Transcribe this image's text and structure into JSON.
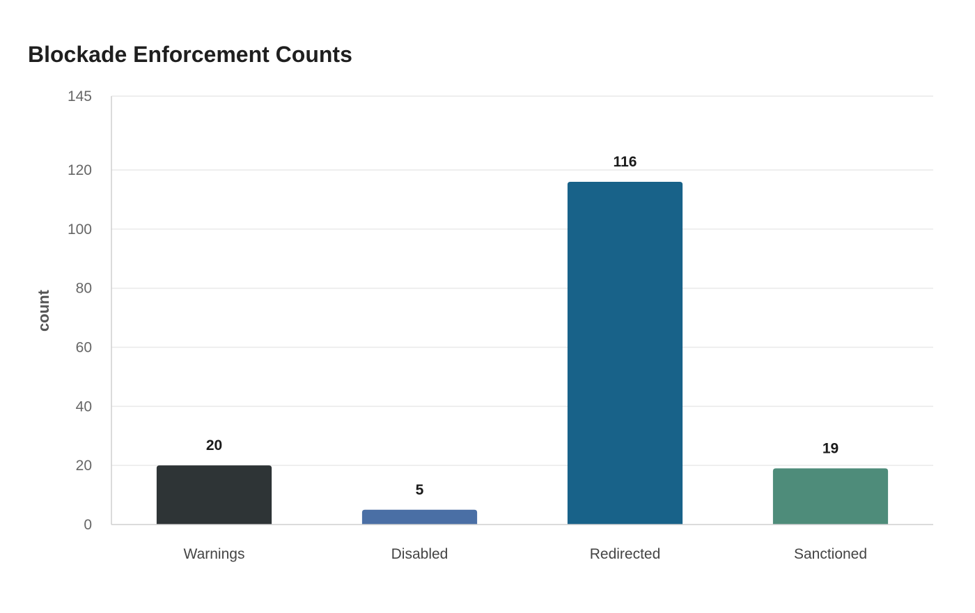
{
  "chart_data": {
    "type": "bar",
    "title": "Blockade Enforcement Counts",
    "xlabel": "",
    "ylabel": "count",
    "categories": [
      "Warnings",
      "Disabled",
      "Redirected",
      "Sanctioned"
    ],
    "values": [
      20,
      5,
      116,
      19
    ],
    "colors": [
      "#2e3436",
      "#4a6fa5",
      "#186289",
      "#4e8c7a"
    ],
    "ylim": [
      0,
      145
    ],
    "yticks": [
      0,
      20,
      40,
      60,
      80,
      100,
      120,
      145
    ],
    "grid": true,
    "legend": "none"
  }
}
